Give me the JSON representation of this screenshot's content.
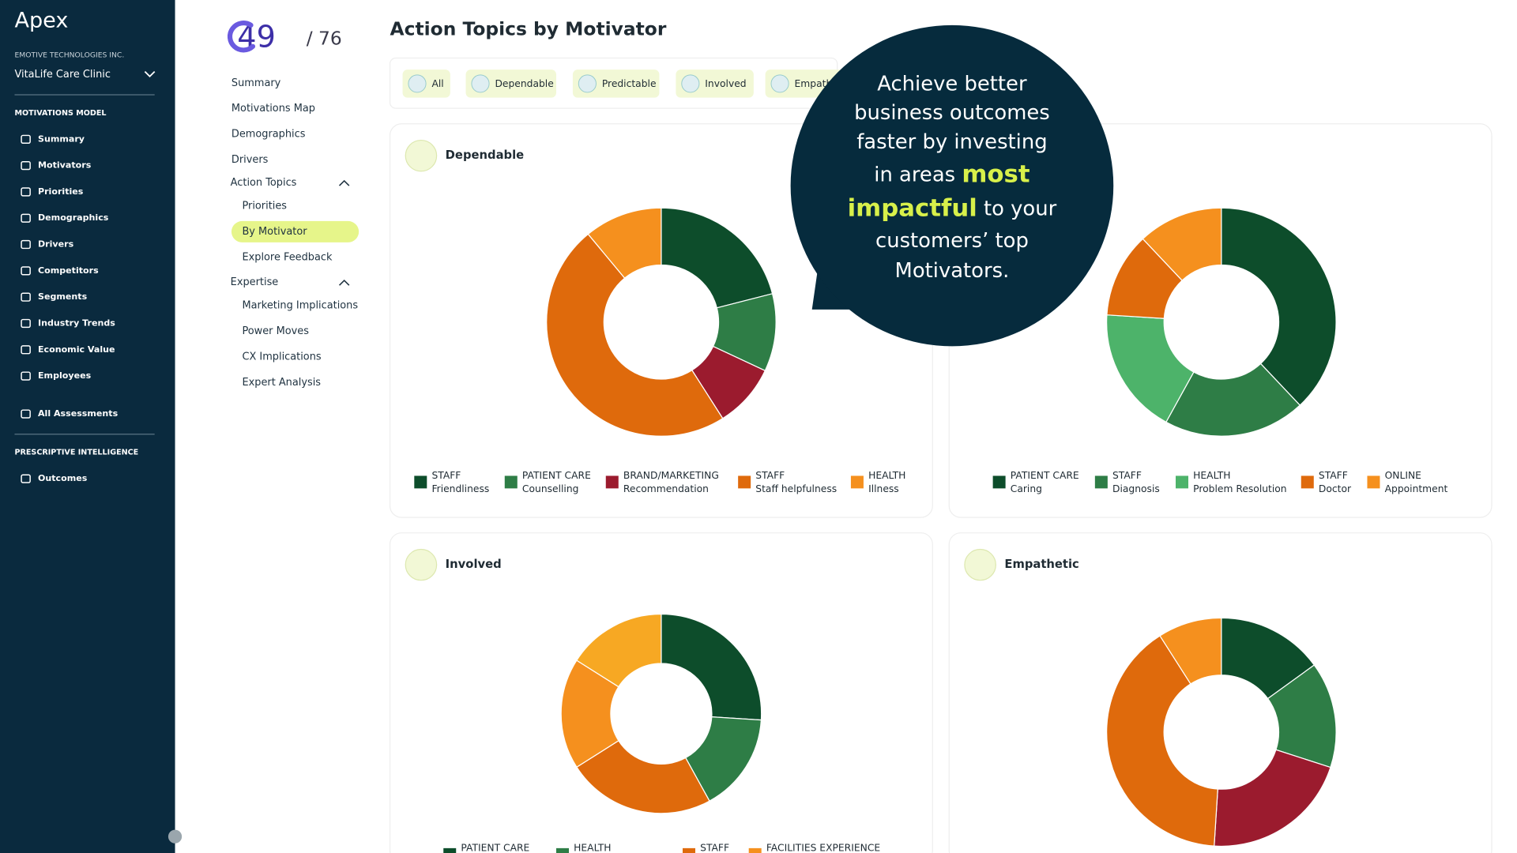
{
  "brand": "Apex",
  "org": {
    "company": "EMOTIVE TECHNOLOGIES INC.",
    "clinic": "VitaLife Care Clinic"
  },
  "sidebar": [
    {
      "title": "MOTIVATIONS MODEL",
      "items": [
        "Summary",
        "Motivators",
        "Priorities",
        "Demographics",
        "Drivers",
        "Competitors",
        "Segments",
        "Industry Trends",
        "Economic Value",
        "Employees"
      ]
    },
    {
      "title": null,
      "items": [
        "All Assessments"
      ]
    },
    {
      "title": "PRESCRIPTIVE INTELLIGENCE",
      "items": [
        "Outcomes"
      ]
    }
  ],
  "score": {
    "value": "49",
    "total": "/ 76"
  },
  "subnav": {
    "top": [
      "Summary",
      "Motivations Map",
      "Demographics",
      "Drivers"
    ],
    "groups": [
      {
        "title": "Action Topics",
        "items": [
          "Priorities",
          "By Motivator",
          "Explore Feedback"
        ],
        "active": 1
      },
      {
        "title": "Expertise",
        "items": [
          "Marketing Implications",
          "Power Moves",
          "CX Implications",
          "Expert Analysis"
        ],
        "active": null
      }
    ]
  },
  "page_title": "Action Topics by Motivator",
  "filters": [
    "All",
    "Dependable",
    "Predictable",
    "Involved",
    "Empathetic"
  ],
  "callout": {
    "lines": [
      [
        {
          "text": "Achieve better",
          "highlight": false
        }
      ],
      [
        {
          "text": "business outcomes",
          "highlight": false
        }
      ],
      [
        {
          "text": "faster by investing",
          "highlight": false
        }
      ],
      [
        {
          "text": "in areas ",
          "highlight": false
        },
        {
          "text": "most",
          "highlight": true
        }
      ],
      [
        {
          "text": "impactful",
          "highlight": true
        },
        {
          "text": " to your",
          "highlight": false
        }
      ],
      [
        {
          "text": "customers’ top",
          "highlight": false
        }
      ],
      [
        {
          "text": "Motivators.",
          "highlight": false
        }
      ]
    ]
  },
  "charts": [
    {
      "title": "Dependable",
      "values": [
        21,
        11,
        9,
        48,
        11
      ],
      "colors": [
        "#0d4d2b",
        "#2e7d46",
        "#9b1b2e",
        "#df6a0c",
        "#f5901e"
      ],
      "legend": [
        {
          "group": "STAFF",
          "label": "Friendliness"
        },
        {
          "group": "PATIENT CARE",
          "label": "Counselling"
        },
        {
          "group": "BRAND/MARKETING",
          "label": "Recommendation"
        },
        {
          "group": "STAFF",
          "label": "Staff helpfulness"
        },
        {
          "group": "HEALTH",
          "label": "Illness"
        }
      ]
    },
    {
      "title": null,
      "values": [
        38,
        20,
        18,
        12,
        12
      ],
      "colors": [
        "#0d4d2b",
        "#2e7d46",
        "#4db36a",
        "#df6a0c",
        "#f5901e"
      ],
      "legend": [
        {
          "group": "PATIENT CARE",
          "label": "Caring"
        },
        {
          "group": "STAFF",
          "label": "Diagnosis"
        },
        {
          "group": "HEALTH",
          "label": "Problem Resolution"
        },
        {
          "group": "STAFF",
          "label": "Doctor"
        },
        {
          "group": "ONLINE",
          "label": "Appointment"
        }
      ]
    },
    {
      "title": "Involved",
      "values": [
        26,
        16,
        24,
        18,
        16
      ],
      "colors": [
        "#0d4d2b",
        "#2e7d46",
        "#df6a0c",
        "#f5901e",
        "#f7a823"
      ],
      "legend": [
        {
          "group": "PATIENT CARE",
          "label": null
        },
        {
          "group": "HEALTH",
          "label": null
        },
        {
          "group": "STAFF",
          "label": null
        },
        {
          "group": "FACILITIES EXPERIENCE",
          "label": null
        }
      ]
    },
    {
      "title": "Empathetic",
      "values": [
        15,
        15,
        21,
        40,
        9
      ],
      "colors": [
        "#0d4d2b",
        "#2e7d46",
        "#9b1b2e",
        "#df6a0c",
        "#f5901e"
      ],
      "legend": []
    }
  ]
}
